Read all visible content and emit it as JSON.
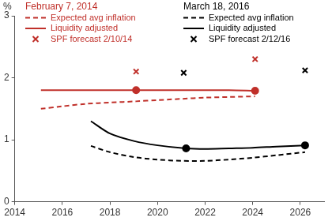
{
  "chart_data": {
    "type": "line",
    "y_label": "%",
    "xlim": [
      2014,
      2027
    ],
    "xticks": [
      2014,
      2016,
      2018,
      2020,
      2022,
      2024,
      2026
    ],
    "ylim": [
      0,
      3
    ],
    "yticks": [
      0,
      1,
      2,
      3
    ],
    "grid": false,
    "legend": "top",
    "groups": [
      {
        "title": "February 7, 2014",
        "color": "#c0302a",
        "series": [
          {
            "name": "Expected avg inflation",
            "color": "#c0302a",
            "line_style": "dashed",
            "x": [
              2015.1,
              2016,
              2017,
              2018,
              2019.1,
              2020,
              2021,
              2022,
              2023,
              2024.1
            ],
            "values": [
              1.5,
              1.54,
              1.58,
              1.6,
              1.62,
              1.64,
              1.66,
              1.68,
              1.69,
              1.7
            ]
          },
          {
            "name": "Liquidity adjusted",
            "color": "#c0302a",
            "line_style": "solid",
            "x": [
              2015.1,
              2017,
              2019.1,
              2021,
              2023,
              2024.1
            ],
            "values": [
              1.8,
              1.8,
              1.8,
              1.8,
              1.8,
              1.79
            ],
            "marked_x": [
              2019.1,
              2024.1
            ]
          },
          {
            "name": "SPF forecast 2/10/14",
            "color": "#c0302a",
            "marker": "x",
            "x": [
              2019.1,
              2024.1
            ],
            "values": [
              2.1,
              2.3
            ]
          }
        ]
      },
      {
        "title": "March 18, 2016",
        "color": "#000000",
        "series": [
          {
            "name": "Expected avg inflation",
            "color": "#000000",
            "line_style": "dashed",
            "x": [
              2017.2,
              2018,
              2019,
              2020,
              2021,
              2022,
              2023,
              2024,
              2025,
              2026.2
            ],
            "values": [
              0.9,
              0.8,
              0.72,
              0.68,
              0.66,
              0.66,
              0.68,
              0.71,
              0.75,
              0.8
            ]
          },
          {
            "name": "Liquidity adjusted",
            "color": "#000000",
            "line_style": "solid",
            "x": [
              2017.2,
              2018,
              2019,
              2020,
              2021.2,
              2022,
              2023,
              2024,
              2025,
              2026.2
            ],
            "values": [
              1.3,
              1.1,
              0.98,
              0.91,
              0.86,
              0.85,
              0.86,
              0.87,
              0.89,
              0.91
            ],
            "marked_x": [
              2021.2,
              2026.2
            ]
          },
          {
            "name": "SPF forecast 2/12/16",
            "color": "#000000",
            "marker": "x",
            "x": [
              2021.1,
              2026.2
            ],
            "values": [
              2.08,
              2.12
            ]
          }
        ]
      }
    ]
  }
}
